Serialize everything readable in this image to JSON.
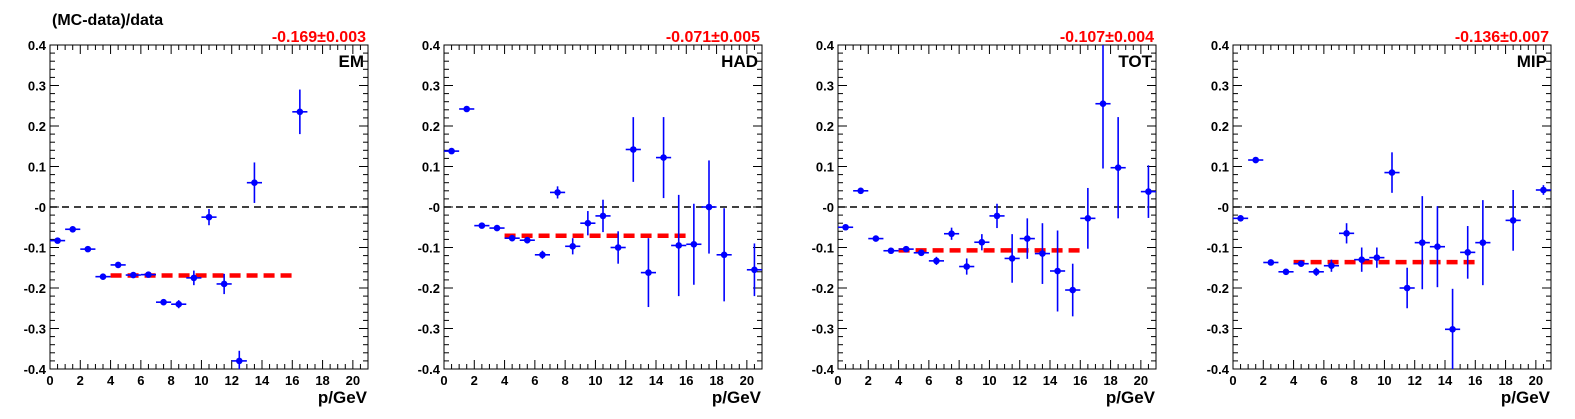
{
  "figure_ylabel": "(MC-data)/data",
  "chart_data": [
    {
      "type": "scatter",
      "label": "EM",
      "fit_text": "-0.169±0.003",
      "fit_value": -0.169,
      "fit_range": [
        4,
        16
      ],
      "xlabel": "p/GeV",
      "xlim": [
        0,
        21
      ],
      "ylim": [
        -0.4,
        0.4
      ],
      "xticks": [
        "0",
        "2",
        "4",
        "6",
        "8",
        "10",
        "12",
        "14",
        "16",
        "18",
        "20"
      ],
      "yticks": [
        "-0.4",
        "-0.3",
        "-0.2",
        "-0.1",
        "-0",
        "0.1",
        "0.2",
        "0.3",
        "0.4"
      ],
      "points": [
        {
          "x": 0.5,
          "y": -0.083,
          "err": 0.005
        },
        {
          "x": 1.5,
          "y": -0.055,
          "err": 0.004
        },
        {
          "x": 2.5,
          "y": -0.104,
          "err": 0.004
        },
        {
          "x": 3.5,
          "y": -0.172,
          "err": 0.004
        },
        {
          "x": 4.5,
          "y": -0.143,
          "err": 0.005
        },
        {
          "x": 5.5,
          "y": -0.168,
          "err": 0.005
        },
        {
          "x": 6.5,
          "y": -0.167,
          "err": 0.005
        },
        {
          "x": 7.5,
          "y": -0.235,
          "err": 0.006
        },
        {
          "x": 8.5,
          "y": -0.24,
          "err": 0.01
        },
        {
          "x": 9.5,
          "y": -0.175,
          "err": 0.018
        },
        {
          "x": 10.5,
          "y": -0.025,
          "err": 0.02
        },
        {
          "x": 11.5,
          "y": -0.19,
          "err": 0.025
        },
        {
          "x": 12.5,
          "y": -0.38,
          "err": 0.025
        },
        {
          "x": 13.5,
          "y": 0.06,
          "err": 0.05
        },
        {
          "x": 16.5,
          "y": 0.235,
          "err": 0.055
        }
      ]
    },
    {
      "type": "scatter",
      "label": "HAD",
      "fit_text": "-0.071±0.005",
      "fit_value": -0.071,
      "fit_range": [
        4,
        16
      ],
      "xlabel": "p/GeV",
      "xlim": [
        0,
        21
      ],
      "ylim": [
        -0.4,
        0.4
      ],
      "xticks": [
        "0",
        "2",
        "4",
        "6",
        "8",
        "10",
        "12",
        "14",
        "16",
        "18",
        "20"
      ],
      "yticks": [
        "-0.4",
        "-0.3",
        "-0.2",
        "-0.1",
        "-0",
        "0.1",
        "0.2",
        "0.3",
        "0.4"
      ],
      "points": [
        {
          "x": 0.5,
          "y": 0.138,
          "err": 0.005
        },
        {
          "x": 1.5,
          "y": 0.242,
          "err": 0.005
        },
        {
          "x": 2.5,
          "y": -0.046,
          "err": 0.005
        },
        {
          "x": 3.5,
          "y": -0.052,
          "err": 0.005
        },
        {
          "x": 4.5,
          "y": -0.077,
          "err": 0.006
        },
        {
          "x": 5.5,
          "y": -0.082,
          "err": 0.008
        },
        {
          "x": 6.5,
          "y": -0.118,
          "err": 0.01
        },
        {
          "x": 7.5,
          "y": 0.036,
          "err": 0.015
        },
        {
          "x": 8.5,
          "y": -0.097,
          "err": 0.02
        },
        {
          "x": 9.5,
          "y": -0.04,
          "err": 0.03
        },
        {
          "x": 10.5,
          "y": -0.022,
          "err": 0.04
        },
        {
          "x": 11.5,
          "y": -0.1,
          "err": 0.04
        },
        {
          "x": 12.5,
          "y": 0.142,
          "err": 0.08
        },
        {
          "x": 13.5,
          "y": -0.162,
          "err": 0.085
        },
        {
          "x": 14.5,
          "y": 0.122,
          "err": 0.1
        },
        {
          "x": 15.5,
          "y": -0.095,
          "err": 0.125
        },
        {
          "x": 16.5,
          "y": -0.092,
          "err": 0.1
        },
        {
          "x": 17.5,
          "y": 0.0,
          "err": 0.115
        },
        {
          "x": 18.5,
          "y": -0.118,
          "err": 0.115
        },
        {
          "x": 20.5,
          "y": -0.155,
          "err": 0.065
        }
      ]
    },
    {
      "type": "scatter",
      "label": "TOT",
      "fit_text": "-0.107±0.004",
      "fit_value": -0.107,
      "fit_range": [
        4,
        16
      ],
      "xlabel": "p/GeV",
      "xlim": [
        0,
        21
      ],
      "ylim": [
        -0.4,
        0.4
      ],
      "xticks": [
        "0",
        "2",
        "4",
        "6",
        "8",
        "10",
        "12",
        "14",
        "16",
        "18",
        "20"
      ],
      "yticks": [
        "-0.4",
        "-0.3",
        "-0.2",
        "-0.1",
        "-0",
        "0.1",
        "0.2",
        "0.3",
        "0.4"
      ],
      "points": [
        {
          "x": 0.5,
          "y": -0.05,
          "err": 0.006
        },
        {
          "x": 1.5,
          "y": 0.04,
          "err": 0.005
        },
        {
          "x": 2.5,
          "y": -0.078,
          "err": 0.005
        },
        {
          "x": 3.5,
          "y": -0.108,
          "err": 0.005
        },
        {
          "x": 4.5,
          "y": -0.104,
          "err": 0.006
        },
        {
          "x": 5.5,
          "y": -0.113,
          "err": 0.008
        },
        {
          "x": 6.5,
          "y": -0.133,
          "err": 0.01
        },
        {
          "x": 7.5,
          "y": -0.066,
          "err": 0.015
        },
        {
          "x": 8.5,
          "y": -0.147,
          "err": 0.02
        },
        {
          "x": 9.5,
          "y": -0.087,
          "err": 0.02
        },
        {
          "x": 10.5,
          "y": -0.022,
          "err": 0.03
        },
        {
          "x": 11.5,
          "y": -0.127,
          "err": 0.06
        },
        {
          "x": 12.5,
          "y": -0.078,
          "err": 0.05
        },
        {
          "x": 13.5,
          "y": -0.115,
          "err": 0.075
        },
        {
          "x": 14.5,
          "y": -0.158,
          "err": 0.1
        },
        {
          "x": 15.5,
          "y": -0.205,
          "err": 0.065
        },
        {
          "x": 16.5,
          "y": -0.028,
          "err": 0.075
        },
        {
          "x": 17.5,
          "y": 0.255,
          "err": 0.16
        },
        {
          "x": 18.5,
          "y": 0.097,
          "err": 0.125
        },
        {
          "x": 20.5,
          "y": 0.038,
          "err": 0.065
        }
      ]
    },
    {
      "type": "scatter",
      "label": "MIP",
      "fit_text": "-0.136±0.007",
      "fit_value": -0.136,
      "fit_range": [
        4,
        16
      ],
      "xlabel": "p/GeV",
      "xlim": [
        0,
        21
      ],
      "ylim": [
        -0.4,
        0.4
      ],
      "xticks": [
        "0",
        "2",
        "4",
        "6",
        "8",
        "10",
        "12",
        "14",
        "16",
        "18",
        "20"
      ],
      "yticks": [
        "-0.4",
        "-0.3",
        "-0.2",
        "-0.1",
        "-0",
        "0.1",
        "0.2",
        "0.3",
        "0.4"
      ],
      "points": [
        {
          "x": 0.5,
          "y": -0.028,
          "err": 0.005
        },
        {
          "x": 1.5,
          "y": 0.116,
          "err": 0.005
        },
        {
          "x": 2.5,
          "y": -0.137,
          "err": 0.006
        },
        {
          "x": 3.5,
          "y": -0.16,
          "err": 0.006
        },
        {
          "x": 4.5,
          "y": -0.14,
          "err": 0.007
        },
        {
          "x": 5.5,
          "y": -0.16,
          "err": 0.01
        },
        {
          "x": 6.5,
          "y": -0.145,
          "err": 0.015
        },
        {
          "x": 7.5,
          "y": -0.065,
          "err": 0.025
        },
        {
          "x": 8.5,
          "y": -0.13,
          "err": 0.03
        },
        {
          "x": 9.5,
          "y": -0.125,
          "err": 0.025
        },
        {
          "x": 10.5,
          "y": 0.085,
          "err": 0.05
        },
        {
          "x": 11.5,
          "y": -0.2,
          "err": 0.05
        },
        {
          "x": 12.5,
          "y": -0.088,
          "err": 0.115
        },
        {
          "x": 13.5,
          "y": -0.098,
          "err": 0.1
        },
        {
          "x": 14.5,
          "y": -0.302,
          "err": 0.1
        },
        {
          "x": 15.5,
          "y": -0.112,
          "err": 0.065
        },
        {
          "x": 16.5,
          "y": -0.088,
          "err": 0.105
        },
        {
          "x": 18.5,
          "y": -0.033,
          "err": 0.075
        },
        {
          "x": 20.5,
          "y": 0.042,
          "err": 0.012
        }
      ]
    }
  ],
  "colors": {
    "points": "#0000ff",
    "fit_line": "#ff0000",
    "fit_text": "#ff0000",
    "zero_line": "#000000",
    "axis": "#000000"
  }
}
